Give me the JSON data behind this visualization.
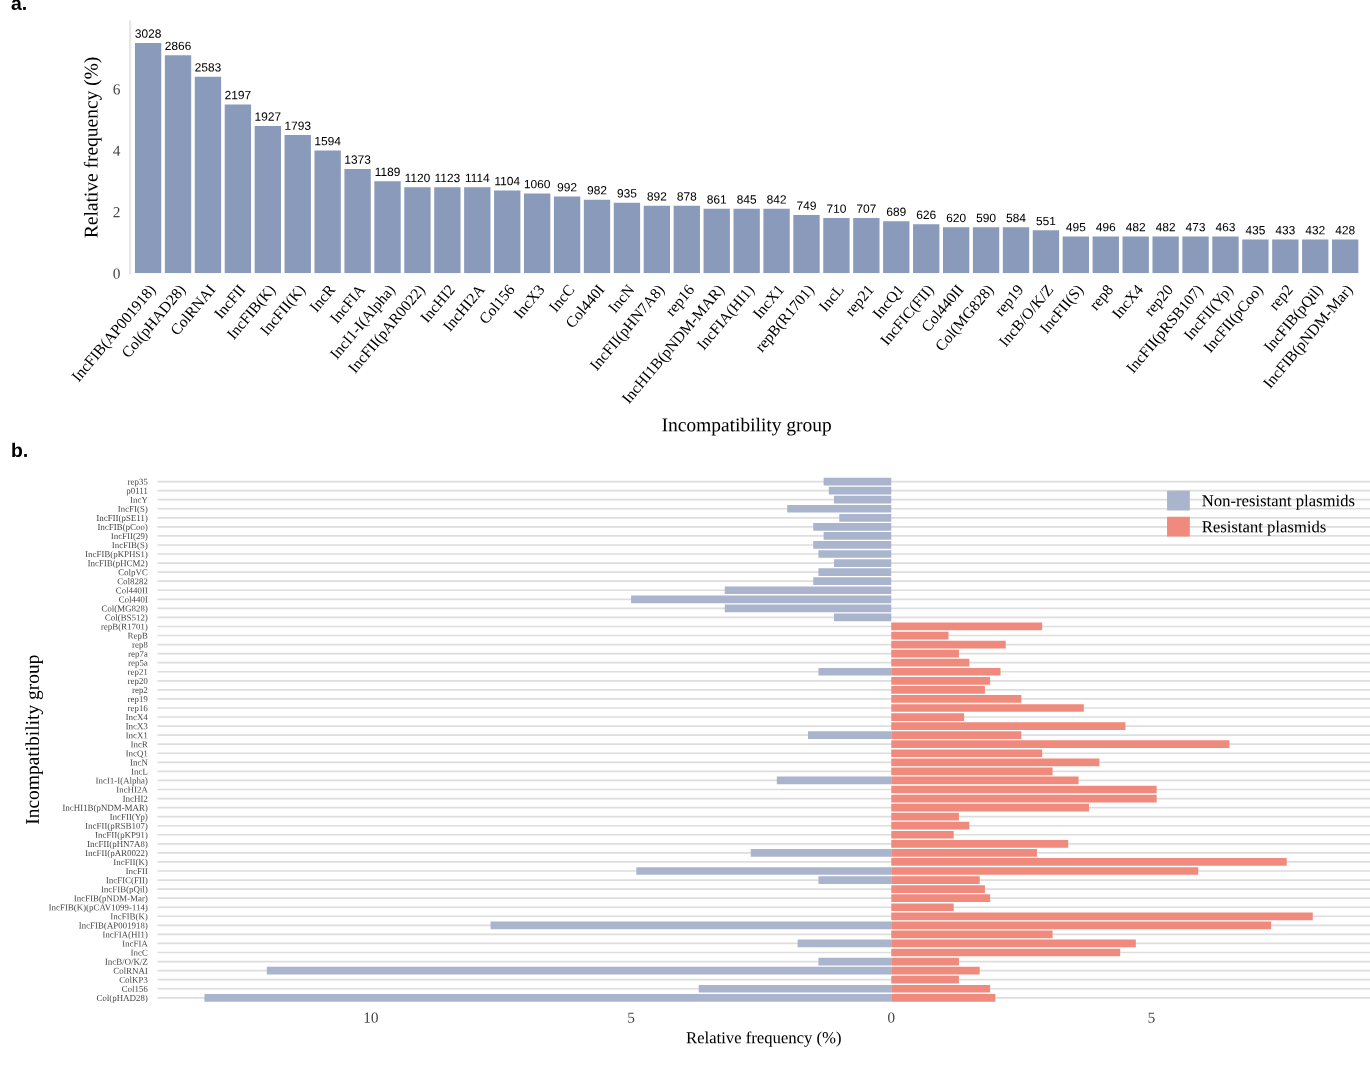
{
  "chart_data": [
    {
      "type": "bar",
      "xlabel": "Incompatibility group",
      "ylabel": "Relative frequency (%)",
      "categories": [
        "IncFIB(AP001918)",
        "Col(pHAD28)",
        "ColRNAI",
        "IncFII",
        "IncFIB(K)",
        "IncFII(K)",
        "IncR",
        "IncFIA",
        "IncI1-I(Alpha)",
        "IncFII(pAR0022)",
        "IncHI2",
        "IncHI2A",
        "Col156",
        "IncX3",
        "IncC",
        "Col440I",
        "IncN",
        "IncFII(pHN7A8)",
        "rep16",
        "IncHI1B(pNDM-MAR)",
        "IncFIA(HI1)",
        "IncX1",
        "repB(R1701)",
        "IncL",
        "rep21",
        "IncQ1",
        "IncFIC(FII)",
        "Col440II",
        "Col(MG828)",
        "rep19",
        "IncB/O/K/Z",
        "IncFII(S)",
        "rep8",
        "IncX4",
        "rep20",
        "IncFII(pRSB107)",
        "IncFII(Yp)",
        "IncFII(pCoo)",
        "rep2",
        "IncFIB(pQil)",
        "IncFIB(pNDM-Mar)"
      ],
      "values": [
        7.5,
        7.1,
        6.4,
        5.5,
        4.8,
        4.5,
        4.0,
        3.4,
        3.0,
        2.8,
        2.8,
        2.8,
        2.7,
        2.6,
        2.5,
        2.4,
        2.3,
        2.2,
        2.2,
        2.1,
        2.1,
        2.1,
        1.9,
        1.8,
        1.8,
        1.7,
        1.6,
        1.5,
        1.5,
        1.5,
        1.4,
        1.2,
        1.2,
        1.2,
        1.2,
        1.2,
        1.2,
        1.1,
        1.1,
        1.1,
        1.1
      ],
      "annotations": [
        "a.",
        {
          "text": "3028",
          "x": "IncFIB(AP001918)",
          "y": 7.5
        },
        {
          "text": "2866",
          "x": "Col(pHAD28)",
          "y": 7.1
        },
        {
          "text": "2583",
          "x": "ColRNAI",
          "y": 6.4
        },
        {
          "text": "2197",
          "x": "IncFII",
          "y": 5.5
        },
        {
          "text": "1927",
          "x": "IncFIB(K)",
          "y": 4.8
        },
        {
          "text": "1793",
          "x": "IncFII(K)",
          "y": 4.5
        },
        {
          "text": "1594",
          "x": "IncR",
          "y": 4.0
        },
        {
          "text": "1373",
          "x": "IncFIA",
          "y": 3.4
        },
        {
          "text": "1189",
          "x": "IncI1-I(Alpha)",
          "y": 3.0
        },
        {
          "text": "1120",
          "x": "IncFII(pAR0022)",
          "y": 2.8
        },
        {
          "text": "1123",
          "x": "IncHI2",
          "y": 2.8
        },
        {
          "text": "1114",
          "x": "IncHI2A",
          "y": 2.8
        },
        {
          "text": "1104",
          "x": "Col156",
          "y": 2.7
        },
        {
          "text": "1060",
          "x": "IncX3",
          "y": 2.6
        },
        {
          "text": "992",
          "x": "IncC",
          "y": 2.5
        },
        {
          "text": "982",
          "x": "Col440I",
          "y": 2.4
        },
        {
          "text": "935",
          "x": "IncN",
          "y": 2.3
        },
        {
          "text": "892",
          "x": "IncFII(pHN7A8)",
          "y": 2.2
        },
        {
          "text": "878",
          "x": "rep16",
          "y": 2.2
        },
        {
          "text": "861",
          "x": "IncHI1B(pNDM-MAR)",
          "y": 2.1
        },
        {
          "text": "845",
          "x": "IncFIA(HI1)",
          "y": 2.1
        },
        {
          "text": "842",
          "x": "IncX1",
          "y": 2.1
        },
        {
          "text": "749",
          "x": "repB(R1701)",
          "y": 1.9
        },
        {
          "text": "710",
          "x": "IncL",
          "y": 1.8
        },
        {
          "text": "707",
          "x": "rep21",
          "y": 1.8
        },
        {
          "text": "689",
          "x": "IncQ1",
          "y": 1.7
        },
        {
          "text": "626",
          "x": "IncFIC(FII)",
          "y": 1.6
        },
        {
          "text": "620",
          "x": "Col440II",
          "y": 1.5
        },
        {
          "text": "590",
          "x": "Col(MG828)",
          "y": 1.5
        },
        {
          "text": "584",
          "x": "rep19",
          "y": 1.5
        },
        {
          "text": "551",
          "x": "IncB/O/K/Z",
          "y": 1.4
        },
        {
          "text": "495",
          "x": "IncFII(S)",
          "y": 1.2
        },
        {
          "text": "496",
          "x": "rep8",
          "y": 1.2
        },
        {
          "text": "482",
          "x": "IncX4",
          "y": 1.2
        },
        {
          "text": "482",
          "x": "rep20",
          "y": 1.2
        },
        {
          "text": "473",
          "x": "IncFII(pRSB107)",
          "y": 1.2
        },
        {
          "text": "463",
          "x": "IncFII(Yp)",
          "y": 1.2
        },
        {
          "text": "435",
          "x": "IncFII(pCoo)",
          "y": 1.1
        },
        {
          "text": "433",
          "x": "rep2",
          "y": 1.1
        },
        {
          "text": "432",
          "x": "IncFIB(pQil)",
          "y": 1.1
        },
        {
          "text": "428",
          "x": "IncFIB(pNDM-Mar)",
          "y": 1.1
        }
      ],
      "color": "#8a9aba",
      "ylim": [
        0,
        8.2
      ],
      "yticks": [
        0,
        2,
        4,
        6
      ],
      "grid": false
    },
    {
      "type": "bar",
      "orientation": "horizontal",
      "xlabel": "Relative frequency (%)",
      "ylabel": "Incompatibility group",
      "annotations": [
        "b."
      ],
      "categories": [
        "rep35",
        "p0111",
        "IncY",
        "IncFI(S)",
        "IncFII(pSE11)",
        "IncFIB(pCoo)",
        "IncFII(29)",
        "IncFIB(S)",
        "IncFIB(pKPHS1)",
        "IncFIB(pHCM2)",
        "ColpVC",
        "Col8282",
        "Col440II",
        "Col440I",
        "Col(MG828)",
        "Col(BS512)",
        "repB(R1701)",
        "RepB",
        "rep8",
        "rep7a",
        "rep5a",
        "rep21",
        "rep20",
        "rep2",
        "rep19",
        "rep16",
        "IncX4",
        "IncX3",
        "IncX1",
        "IncR",
        "IncQ1",
        "IncN",
        "IncL",
        "IncI1-I(Alpha)",
        "IncHI2A",
        "IncHI2",
        "IncHI1B(pNDM-MAR)",
        "IncFII(Yp)",
        "IncFII(pRSB107)",
        "IncFII(pKP91)",
        "IncFII(pHN7A8)",
        "IncFII(pAR0022)",
        "IncFII(K)",
        "IncFII",
        "IncFIC(FII)",
        "IncFIB(pQil)",
        "IncFIB(pNDM-Mar)",
        "IncFIB(K)(pCAV1099-114)",
        "IncFIB(K)",
        "IncFIB(AP001918)",
        "IncFIA(HI1)",
        "IncFIA",
        "IncC",
        "IncB/O/K/Z",
        "ColRNAI",
        "ColKP3",
        "Col156",
        "Col(pHAD28)"
      ],
      "series": [
        {
          "name": "Non-resistant plasmids",
          "color": "#aab4cd",
          "values": [
            -1.3,
            -1.2,
            -1.1,
            -2.0,
            -1.0,
            -1.5,
            -1.3,
            -1.5,
            -1.4,
            -1.1,
            -1.4,
            -1.5,
            -3.2,
            -5.0,
            -3.2,
            -1.1,
            null,
            null,
            null,
            null,
            null,
            -1.4,
            null,
            null,
            null,
            null,
            null,
            null,
            -1.6,
            null,
            null,
            null,
            null,
            -2.2,
            null,
            null,
            null,
            null,
            null,
            null,
            null,
            -2.7,
            null,
            -4.9,
            -1.4,
            null,
            null,
            null,
            null,
            -7.7,
            null,
            -1.8,
            null,
            -1.4,
            -12.0,
            null,
            -3.7,
            -13.2
          ]
        },
        {
          "name": "Resistant plasmids",
          "color": "#ef8a7d",
          "values": [
            null,
            null,
            null,
            null,
            null,
            null,
            null,
            null,
            null,
            null,
            null,
            null,
            null,
            null,
            null,
            null,
            2.9,
            1.1,
            2.2,
            1.3,
            1.5,
            2.1,
            1.9,
            1.8,
            2.5,
            3.7,
            1.4,
            4.5,
            2.5,
            6.5,
            2.9,
            4.0,
            3.1,
            3.6,
            5.1,
            5.1,
            3.8,
            1.3,
            1.5,
            1.2,
            3.4,
            2.8,
            7.6,
            5.9,
            1.7,
            1.8,
            1.9,
            1.2,
            8.1,
            7.3,
            3.1,
            4.7,
            4.4,
            1.3,
            1.7,
            1.3,
            1.9,
            2.0
          ]
        }
      ],
      "xlim": [
        -14.1,
        9.2
      ],
      "xticks": [
        {
          "value": -10,
          "label": "10"
        },
        {
          "value": -5,
          "label": "5"
        },
        0,
        5
      ],
      "grid": "y",
      "legend": "top right"
    }
  ]
}
